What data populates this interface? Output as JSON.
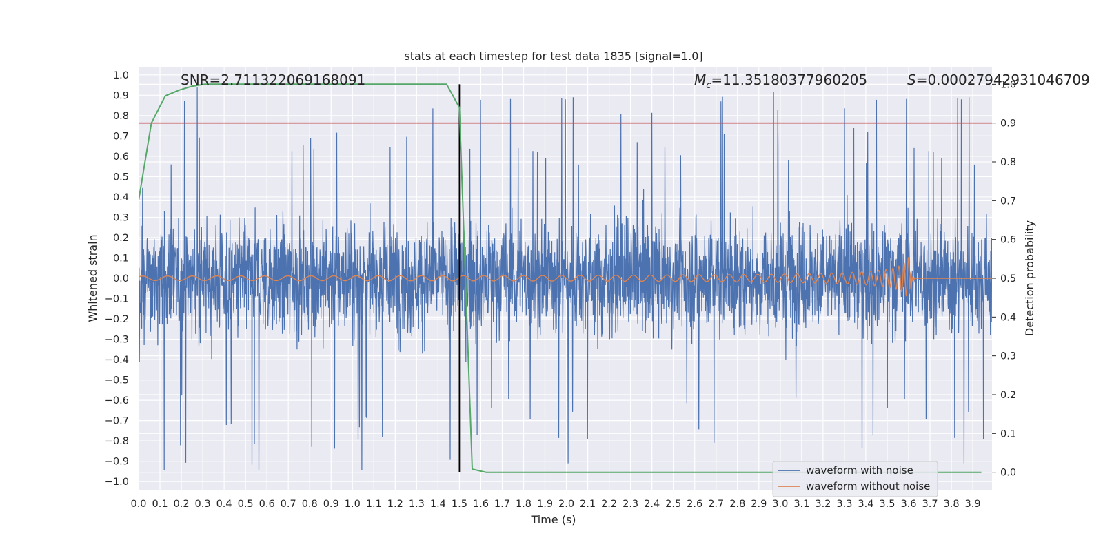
{
  "chart_data": {
    "type": "line",
    "title": "stats at each timestep for test data 1835 [signal=1.0]",
    "xlabel": "Time (s)",
    "ylabel": "Whitened strain",
    "y2label": "Detection probability",
    "xlim": [
      0.0,
      3.99
    ],
    "ylim": [
      -1.04,
      1.04
    ],
    "y2lim": [
      -0.045,
      1.045
    ],
    "x_ticks": [
      "0.0",
      "0.1",
      "0.2",
      "0.3",
      "0.4",
      "0.5",
      "0.6",
      "0.7",
      "0.8",
      "0.9",
      "1.0",
      "1.1",
      "1.2",
      "1.3",
      "1.4",
      "1.5",
      "1.6",
      "1.7",
      "1.8",
      "1.9",
      "2.0",
      "2.1",
      "2.2",
      "2.3",
      "2.4",
      "2.5",
      "2.6",
      "2.7",
      "2.8",
      "2.9",
      "3.0",
      "3.1",
      "3.2",
      "3.3",
      "3.4",
      "3.5",
      "3.6",
      "3.7",
      "3.8",
      "3.9"
    ],
    "y_ticks": [
      "1.0",
      "0.9",
      "0.8",
      "0.7",
      "0.6",
      "0.5",
      "0.4",
      "0.3",
      "0.2",
      "0.1",
      "0.0",
      "−0.1",
      "−0.2",
      "−0.3",
      "−0.4",
      "−0.5",
      "−0.6",
      "−0.7",
      "−0.8",
      "−0.9",
      "−1.0"
    ],
    "y2_ticks": [
      "1.0",
      "0.9",
      "0.8",
      "0.7",
      "0.6",
      "0.5",
      "0.4",
      "0.3",
      "0.2",
      "0.1",
      "0.0"
    ],
    "annotations": {
      "snr": "SNR=2.711322069168091",
      "mc_label": "M",
      "mc_sub": "c",
      "mc_value": "=11.35180377960205",
      "s_label": "S",
      "s_value": "=0.00027942931046709"
    },
    "vline_x": 1.5,
    "hline_prob": 0.9,
    "grid": true,
    "legend_position": "lower-right",
    "series": [
      {
        "name": "waveform with noise",
        "color": "#4c72b0",
        "axis": "left",
        "kind": "noise",
        "amplitude_typical": 0.35,
        "amplitude_peak": 0.95
      },
      {
        "name": "waveform without noise",
        "color": "#dd8452",
        "axis": "left",
        "kind": "chirp",
        "merger_time": 3.6,
        "peak_amplitude": 0.1
      },
      {
        "color": "#55a868",
        "axis": "right",
        "kind": "probability",
        "x": [
          0.0,
          0.06,
          0.125,
          0.19,
          0.25,
          0.31,
          0.375,
          0.44,
          0.5,
          0.56,
          0.625,
          0.69,
          0.75,
          0.81,
          0.875,
          0.94,
          1.0,
          1.06,
          1.125,
          1.19,
          1.25,
          1.31,
          1.375,
          1.44,
          1.5,
          1.56,
          1.625,
          1.69,
          1.75,
          1.81,
          1.875,
          1.94,
          2.0,
          2.5,
          3.0,
          3.5,
          3.94
        ],
        "y": [
          0.7,
          0.9,
          0.97,
          0.985,
          0.995,
          1.0,
          1.0,
          1.0,
          1.0,
          1.0,
          1.0,
          1.0,
          1.0,
          1.0,
          1.0,
          1.0,
          1.0,
          1.0,
          1.0,
          1.0,
          1.0,
          1.0,
          1.0,
          1.0,
          0.94,
          0.008,
          0.0,
          0.0,
          0.0,
          0.0,
          0.0,
          0.0,
          0.0,
          0.0,
          0.0,
          0.0,
          0.0
        ]
      }
    ],
    "colors": {
      "background": "#eaeaf2",
      "grid": "#ffffff",
      "threshold": "#c44e52",
      "vline": "#000000"
    }
  }
}
